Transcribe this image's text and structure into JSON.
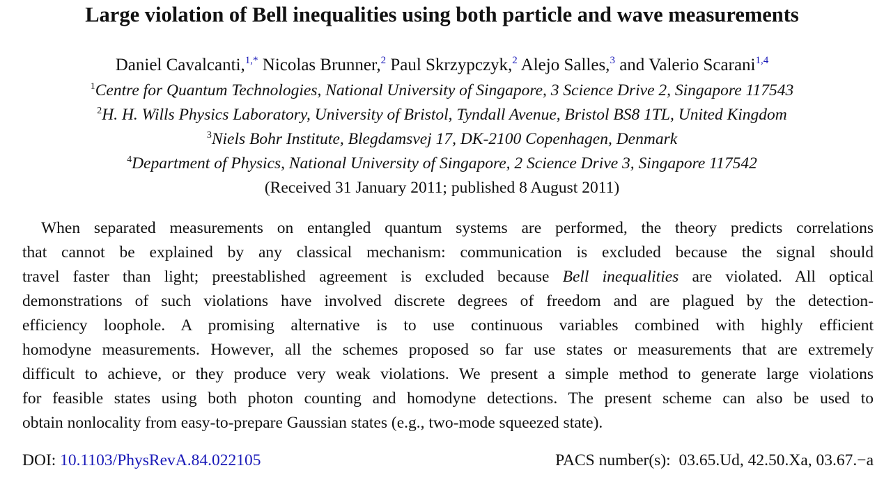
{
  "title": "Large violation of Bell inequalities using both particle and wave measurements",
  "authors": [
    {
      "name": "Daniel Cavalcanti,",
      "sup": "1,*"
    },
    {
      "name": "Nicolas Brunner,",
      "sup": "2"
    },
    {
      "name": "Paul Skrzypczyk,",
      "sup": "2"
    },
    {
      "name": "Alejo Salles,",
      "sup": "3"
    },
    {
      "name": "and Valerio Scarani",
      "sup": "1,4"
    }
  ],
  "affiliations": [
    {
      "num": "1",
      "text": "Centre for Quantum Technologies, National University of Singapore, 3 Science Drive 2, Singapore 117543"
    },
    {
      "num": "2",
      "text": "H. H. Wills Physics Laboratory, University of Bristol, Tyndall Avenue, Bristol BS8 1TL, United Kingdom"
    },
    {
      "num": "3",
      "text": "Niels Bohr Institute, Blegdamsvej 17, DK-2100 Copenhagen, Denmark"
    },
    {
      "num": "4",
      "text": "Department of Physics, National University of Singapore, 2 Science Drive 3, Singapore 117542"
    }
  ],
  "received": "(Received 31 January 2011; published 8 August 2011)",
  "abstract": {
    "l1": "When separated measurements on entangled quantum systems are performed, the theory predicts correlations",
    "l2": "that cannot be explained by any classical mechanism: communication is excluded because the signal should",
    "l3_pre": "travel faster than light; preestablished agreement is excluded because ",
    "l3_em": "Bell inequalities",
    "l3_post": " are violated. All optical",
    "l4": "demonstrations of such violations have involved discrete degrees of freedom and are plagued by the detection-",
    "l5": "efficiency loophole. A promising alternative is to use continuous variables combined with highly efficient",
    "l6": "homodyne measurements. However, all the schemes proposed so far use states or measurements that are extremely",
    "l7": "difficult to achieve, or they produce very weak violations. We present a simple method to generate large violations",
    "l8": "for feasible states using both photon counting and homodyne detections. The present scheme can also be used to",
    "l9": "obtain nonlocality from easy-to-prepare Gaussian states (e.g., two-mode squeezed state)."
  },
  "doi": {
    "label": "DOI: ",
    "value": "10.1103/PhysRevA.84.022105"
  },
  "pacs": {
    "label": "PACS number(s):",
    "value": "03.65.Ud, 42.50.Xa, 03.67.−a"
  },
  "colors": {
    "link": "#1a1ab8",
    "text": "#111111"
  }
}
